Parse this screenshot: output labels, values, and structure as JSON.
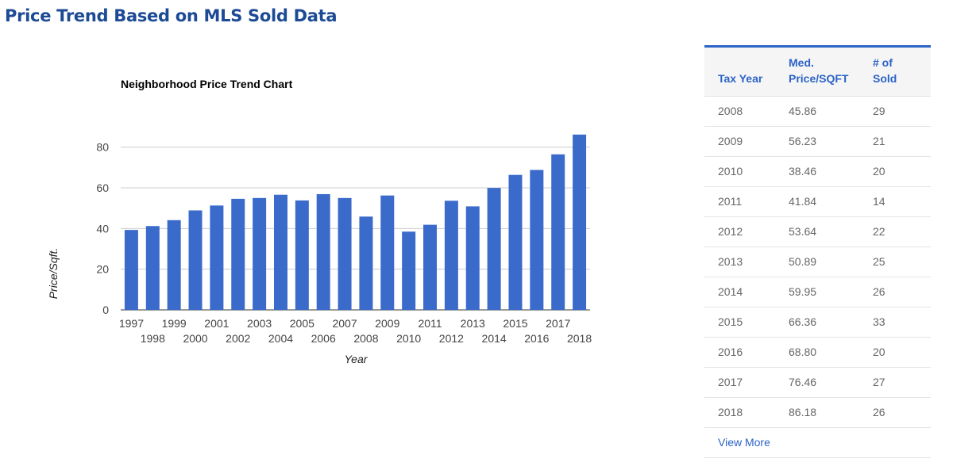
{
  "page": {
    "section_title": "Price Trend Based on MLS Sold Data"
  },
  "chart_data": {
    "type": "bar",
    "title": "Neighborhood Price Trend Chart",
    "xlabel": "Year",
    "ylabel": "Price/Sqft.",
    "ylim": [
      0,
      90
    ],
    "yticks": [
      0,
      20,
      40,
      60,
      80
    ],
    "grid": true,
    "legend": "none",
    "bar_color": "#3a6bcb",
    "categories": [
      "1997",
      "1998",
      "1999",
      "2000",
      "2001",
      "2002",
      "2003",
      "2004",
      "2005",
      "2006",
      "2007",
      "2008",
      "2009",
      "2010",
      "2011",
      "2012",
      "2013",
      "2014",
      "2015",
      "2016",
      "2017",
      "2018"
    ],
    "values": [
      39.3,
      41.2,
      44.1,
      48.9,
      51.3,
      54.6,
      55.0,
      56.6,
      53.8,
      56.9,
      55.0,
      45.86,
      56.23,
      38.46,
      41.84,
      53.64,
      50.89,
      59.95,
      66.36,
      68.8,
      76.46,
      86.18
    ]
  },
  "table": {
    "headers": {
      "year": "Tax Year",
      "price_line1": "Med.",
      "price_line2": "Price/SQFT",
      "sold_line1": "# of",
      "sold_line2": "Sold"
    },
    "rows": [
      {
        "year": "2008",
        "price": "45.86",
        "sold": "29"
      },
      {
        "year": "2009",
        "price": "56.23",
        "sold": "21"
      },
      {
        "year": "2010",
        "price": "38.46",
        "sold": "20"
      },
      {
        "year": "2011",
        "price": "41.84",
        "sold": "14"
      },
      {
        "year": "2012",
        "price": "53.64",
        "sold": "22"
      },
      {
        "year": "2013",
        "price": "50.89",
        "sold": "25"
      },
      {
        "year": "2014",
        "price": "59.95",
        "sold": "26"
      },
      {
        "year": "2015",
        "price": "66.36",
        "sold": "33"
      },
      {
        "year": "2016",
        "price": "68.80",
        "sold": "20"
      },
      {
        "year": "2017",
        "price": "76.46",
        "sold": "27"
      },
      {
        "year": "2018",
        "price": "86.18",
        "sold": "26"
      }
    ],
    "view_more": "View More"
  }
}
